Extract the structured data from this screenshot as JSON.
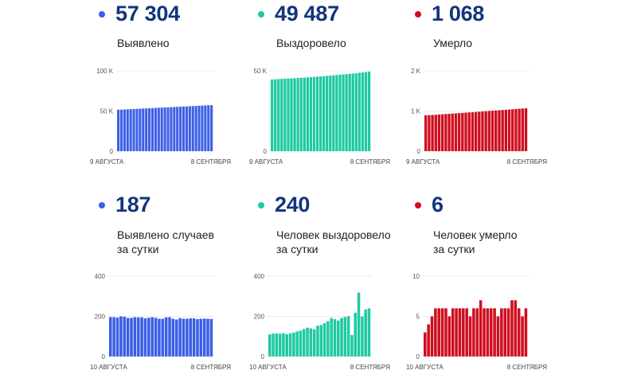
{
  "panels": {
    "total_cases": {
      "value": "57 304",
      "label": "Выявлено",
      "dot_color": "#3c5fe6"
    },
    "total_recovered": {
      "value": "49 487",
      "label": "Выздоровело",
      "dot_color": "#1ec9a3"
    },
    "total_deaths": {
      "value": "1 068",
      "label": "Умерло",
      "dot_color": "#cf0f20"
    },
    "daily_cases": {
      "value": "187",
      "label_line1": "Выявлено случаев",
      "label_line2": "за сутки",
      "dot_color": "#3c5fe6"
    },
    "daily_recovered": {
      "value": "240",
      "label_line1": "Человек выздоровело",
      "label_line2": "за сутки",
      "dot_color": "#1ec9a3"
    },
    "daily_deaths": {
      "value": "6",
      "label_line1": "Человек умерло",
      "label_line2": "за сутки",
      "dot_color": "#cf0f20"
    }
  },
  "chart_data": [
    {
      "id": "total_cases",
      "type": "bar",
      "title": "Выявлено",
      "color": "#3c5fe6",
      "ylim": [
        0,
        100000
      ],
      "yticks": [
        {
          "value": 0,
          "label": "0"
        },
        {
          "value": 50000,
          "label": "50 K"
        },
        {
          "value": 100000,
          "label": "100 K"
        }
      ],
      "x_start_label": "9 АВГУСТА",
      "x_end_label": "8 СЕНТЯБРЯ",
      "values": [
        51554,
        51750,
        51946,
        52140,
        52340,
        52538,
        52730,
        52922,
        53118,
        53313,
        53508,
        53698,
        53891,
        54087,
        54280,
        54468,
        54656,
        54851,
        55047,
        55235,
        55419,
        55610,
        55798,
        55986,
        56176,
        56366,
        56552,
        56740,
        56929,
        57117,
        57304
      ]
    },
    {
      "id": "total_recovered",
      "type": "bar",
      "title": "Выздоровело",
      "color": "#1ec9a3",
      "ylim": [
        0,
        50000
      ],
      "yticks": [
        {
          "value": 0,
          "label": "0"
        },
        {
          "value": 50000,
          "label": "50 K"
        }
      ],
      "x_start_label": "9 АВГУСТА",
      "x_end_label": "8 СЕНТЯБРЯ",
      "values": [
        44646,
        44756,
        44870,
        44985,
        45099,
        45215,
        45326,
        45442,
        45561,
        45686,
        45815,
        45952,
        46096,
        46236,
        46372,
        46525,
        46682,
        46848,
        47024,
        47216,
        47402,
        47581,
        47773,
        47970,
        48171,
        48278,
        48496,
        48814,
        49013,
        49247,
        49487
      ]
    },
    {
      "id": "total_deaths",
      "type": "bar",
      "title": "Умерло",
      "color": "#cf0f20",
      "ylim": [
        0,
        2000
      ],
      "yticks": [
        {
          "value": 0,
          "label": "0"
        },
        {
          "value": 1000,
          "label": "1 K"
        },
        {
          "value": 2000,
          "label": "2 K"
        }
      ],
      "x_start_label": "9 АВГУСТА",
      "x_end_label": "8 СЕНТЯБРЯ",
      "values": [
        895,
        898,
        902,
        907,
        913,
        919,
        925,
        931,
        936,
        942,
        948,
        954,
        960,
        966,
        971,
        977,
        983,
        990,
        996,
        1002,
        1008,
        1014,
        1019,
        1025,
        1031,
        1037,
        1044,
        1051,
        1057,
        1062,
        1068
      ]
    },
    {
      "id": "daily_cases",
      "type": "bar",
      "title": "Выявлено случаев за сутки",
      "color": "#3c5fe6",
      "ylim": [
        0,
        400
      ],
      "yticks": [
        {
          "value": 0,
          "label": "0"
        },
        {
          "value": 200,
          "label": "200"
        },
        {
          "value": 400,
          "label": "400"
        }
      ],
      "x_start_label": "10 АВГУСТА",
      "x_end_label": "8 СЕНТЯБРЯ",
      "values": [
        196,
        196,
        194,
        200,
        198,
        192,
        192,
        196,
        195,
        195,
        190,
        193,
        196,
        193,
        188,
        188,
        195,
        196,
        188,
        184,
        191,
        188,
        188,
        190,
        190,
        186,
        188,
        189,
        188,
        187
      ]
    },
    {
      "id": "daily_recovered",
      "type": "bar",
      "title": "Человек выздоровело за сутки",
      "color": "#1ec9a3",
      "ylim": [
        0,
        400
      ],
      "yticks": [
        {
          "value": 0,
          "label": "0"
        },
        {
          "value": 200,
          "label": "200"
        },
        {
          "value": 400,
          "label": "400"
        }
      ],
      "x_start_label": "10 АВГУСТА",
      "x_end_label": "8 СЕНТЯБРЯ",
      "values": [
        110,
        114,
        115,
        114,
        116,
        111,
        116,
        119,
        125,
        129,
        137,
        144,
        140,
        136,
        153,
        157,
        166,
        176,
        192,
        186,
        179,
        192,
        197,
        201,
        107,
        218,
        318,
        199,
        234,
        240
      ]
    },
    {
      "id": "daily_deaths",
      "type": "bar",
      "title": "Человек умерло за сутки",
      "color": "#cf0f20",
      "ylim": [
        0,
        10
      ],
      "yticks": [
        {
          "value": 0,
          "label": "0"
        },
        {
          "value": 5,
          "label": "5"
        },
        {
          "value": 10,
          "label": "10"
        }
      ],
      "x_start_label": "10 АВГУСТА",
      "x_end_label": "8 СЕНТЯБРЯ",
      "values": [
        3,
        4,
        5,
        6,
        6,
        6,
        6,
        5,
        6,
        6,
        6,
        6,
        6,
        5,
        6,
        6,
        7,
        6,
        6,
        6,
        6,
        5,
        6,
        6,
        6,
        7,
        7,
        6,
        5,
        6
      ]
    }
  ]
}
